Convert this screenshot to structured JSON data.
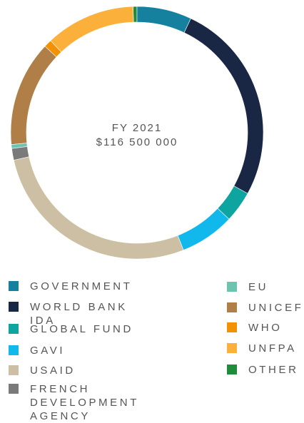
{
  "chart_data": {
    "type": "donut",
    "center_label": [
      "FY 2021",
      "$116 500 000"
    ],
    "categories": [
      "GOVERNMENT",
      "WORLD BANK IDA",
      "GLOBAL FUND",
      "GAVI",
      "USAID",
      "FRENCH DEVELOPMENT AGENCY",
      "EU",
      "UNICEF",
      "WHO",
      "UNFPA",
      "OTHER"
    ],
    "values": [
      7,
      26,
      4,
      7,
      27.5,
      1.5,
      0.5,
      13.5,
      1,
      11.5,
      0.5
    ],
    "colors": [
      "#15819f",
      "#1a2744",
      "#0ea5a0",
      "#10b8ec",
      "#cdbfa3",
      "#7a7a7a",
      "#6cc4b0",
      "#b07f47",
      "#f39200",
      "#fbb03b",
      "#1e8c3a"
    ]
  }
}
